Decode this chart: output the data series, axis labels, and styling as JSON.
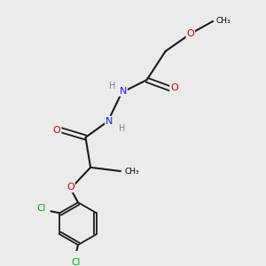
{
  "bg_color": "#ebebeb",
  "atom_colors": {
    "C": "#000000",
    "H": "#808080",
    "N": "#1a1aff",
    "O": "#cc0000",
    "Cl": "#00aa00"
  },
  "bond_color": "#1a1a1a",
  "figsize": [
    3.0,
    3.0
  ],
  "dpi": 100
}
